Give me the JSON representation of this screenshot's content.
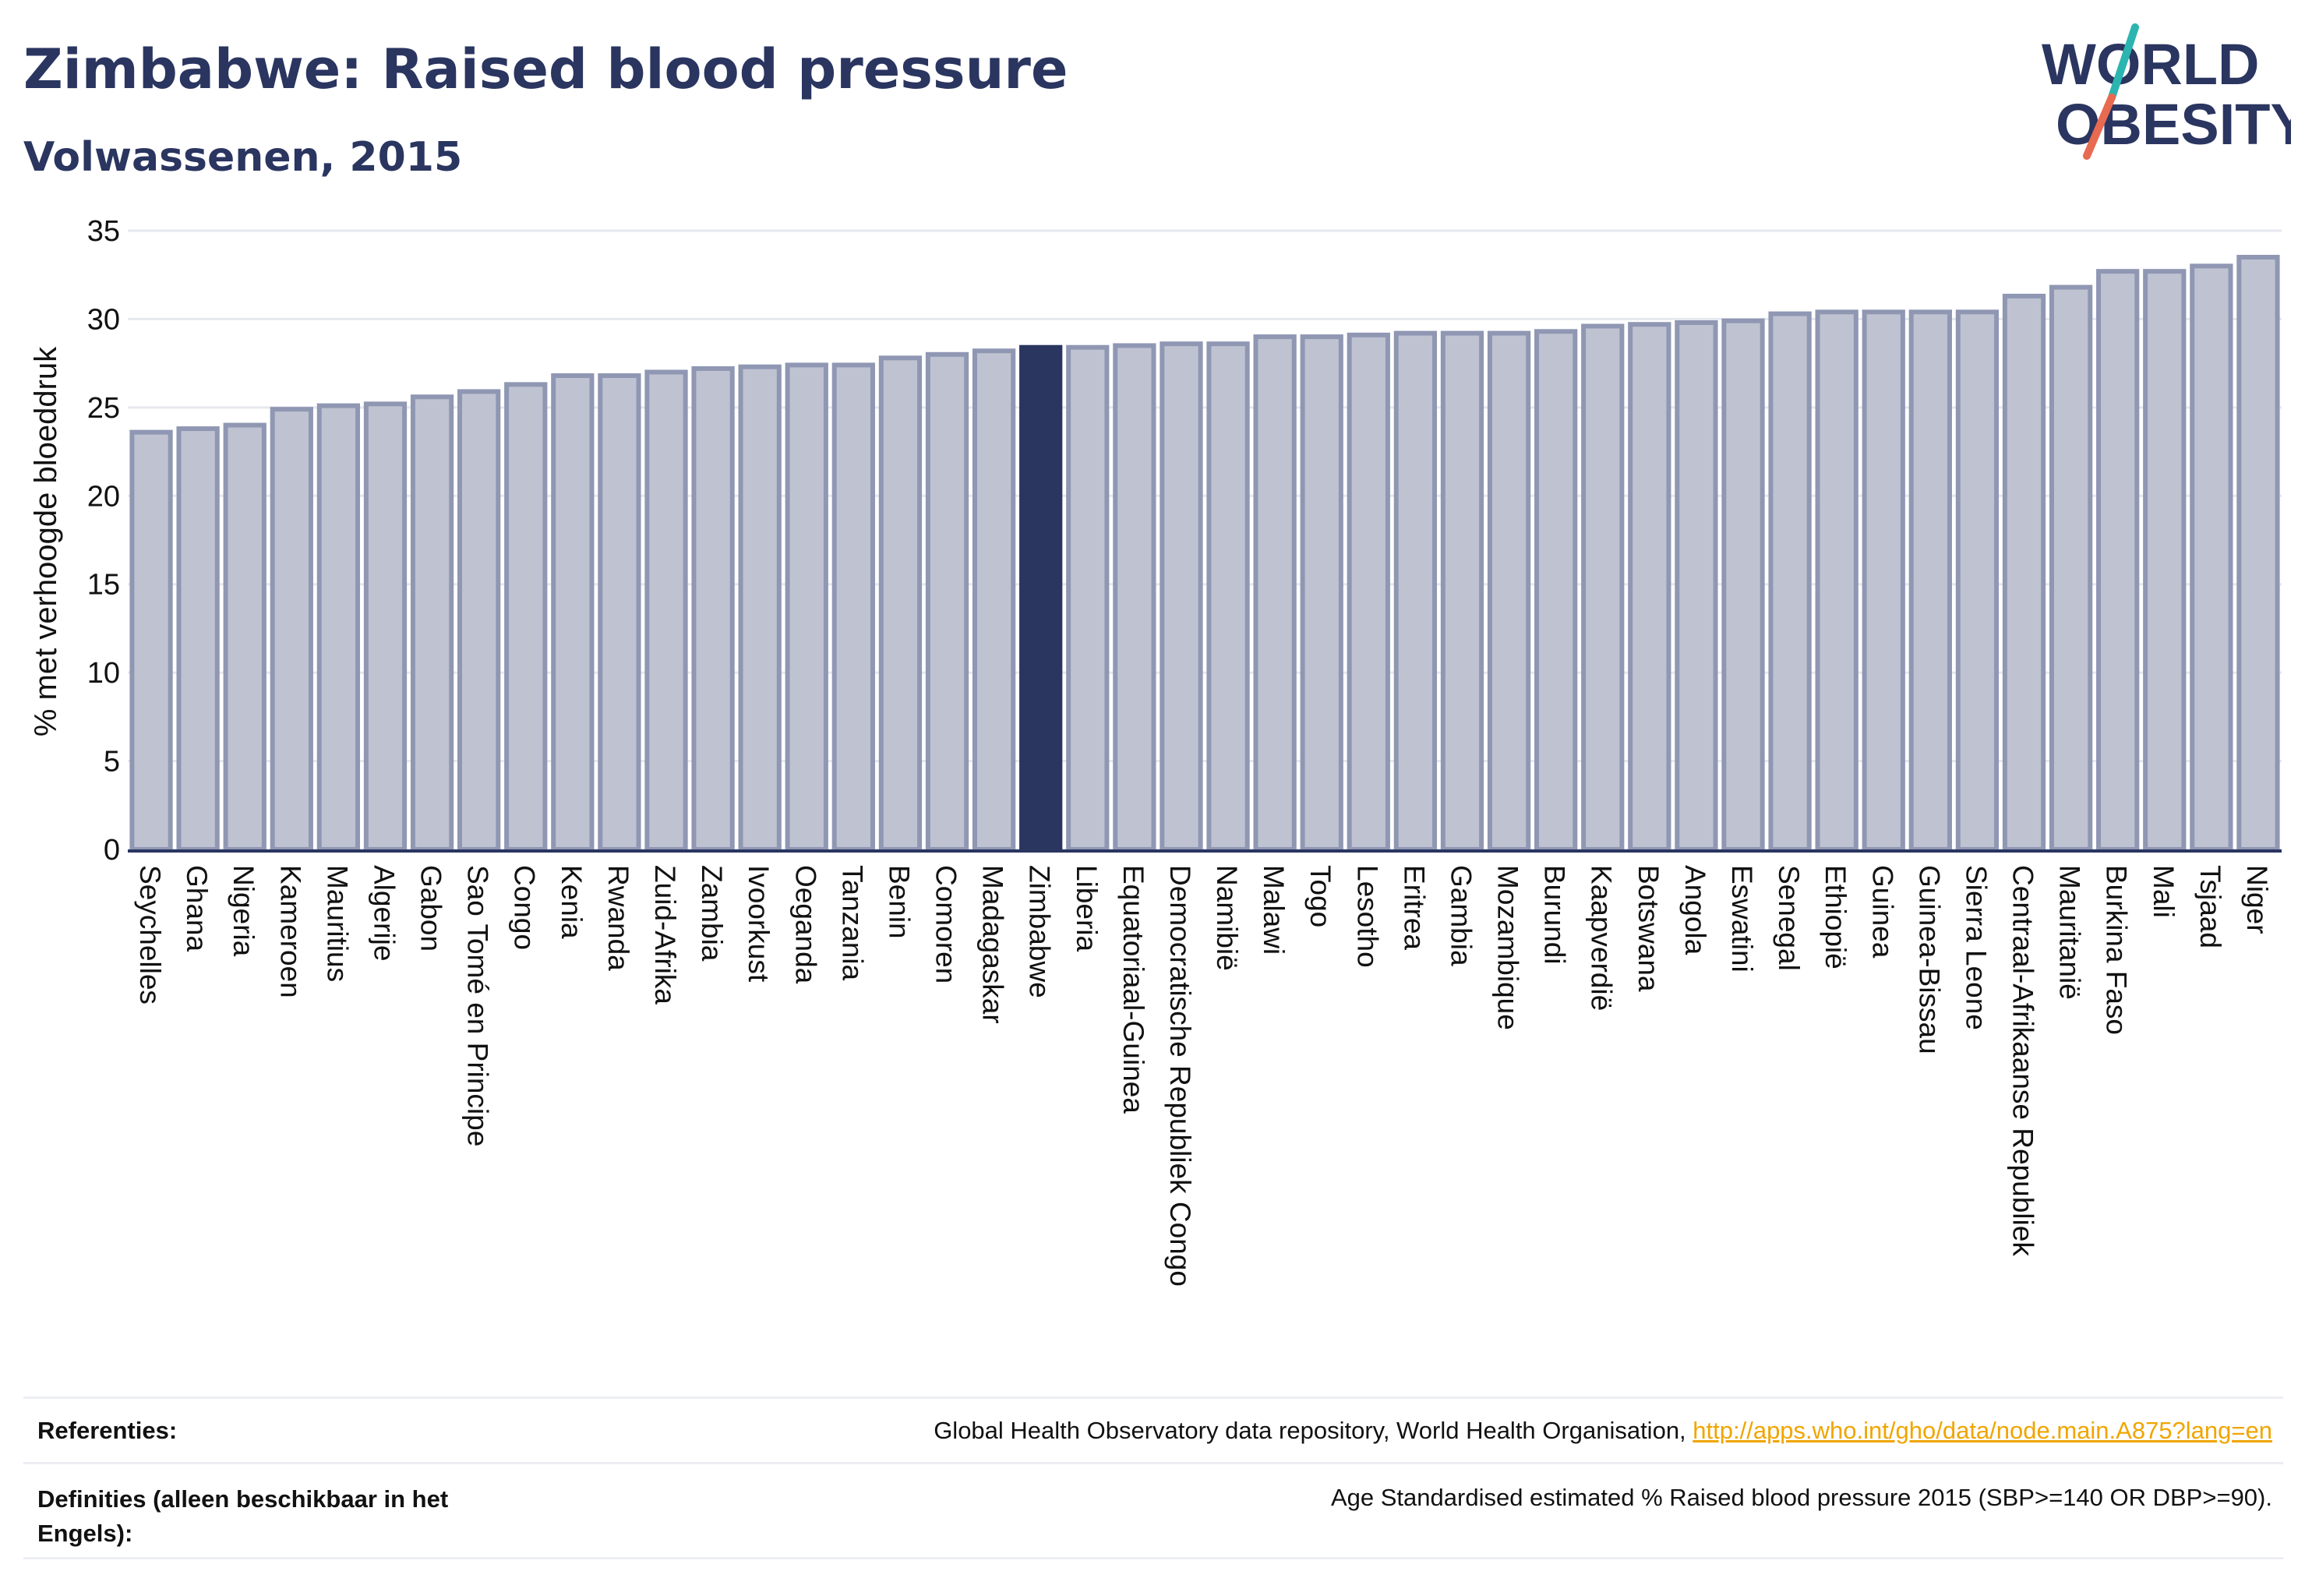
{
  "header": {
    "title": "Zimbabwe: Raised blood pressure",
    "subtitle": "Volwassenen, 2015",
    "logo_line1": "WORLD",
    "logo_line2": "OBESITY"
  },
  "footer": {
    "ref_label": "Referenties:",
    "ref_text": "Global Health Observatory data repository, World Health Organisation, ",
    "ref_link": "http://apps.who.int/gho/data/node.main.A875?lang=en",
    "def_label": "Definities (alleen beschikbaar in het Engels):",
    "def_text": "Age Standardised estimated % Raised blood pressure 2015 (SBP>=140 OR DBP>=90)."
  },
  "colors": {
    "bar": "#bfc3d1",
    "bar_stroke": "#8f97b3",
    "highlight": "#2a3560",
    "grid": "#e6e8ef",
    "axis": "#2a3560",
    "logo_teal": "#2bb5b0",
    "logo_orange": "#e86a50"
  },
  "chart_data": {
    "type": "bar",
    "title": "Zimbabwe: Raised blood pressure",
    "subtitle": "Volwassenen, 2015",
    "xlabel": "",
    "ylabel": "% met verhoogde bloeddruk",
    "ylim": [
      0,
      35
    ],
    "yticks": [
      0,
      5,
      10,
      15,
      20,
      25,
      30,
      35
    ],
    "grid": true,
    "highlight": "Zimbabwe",
    "categories": [
      "Seychelles",
      "Ghana",
      "Nigeria",
      "Kameroen",
      "Mauritius",
      "Algerije",
      "Gabon",
      "Sao Tomé en Principe",
      "Congo",
      "Kenia",
      "Rwanda",
      "Zuid-Afrika",
      "Zambia",
      "Ivoorkust",
      "Oeganda",
      "Tanzania",
      "Benin",
      "Comoren",
      "Madagaskar",
      "Zimbabwe",
      "Liberia",
      "Equatoriaal-Guinea",
      "Democratische Republiek Congo",
      "Namibië",
      "Malawi",
      "Togo",
      "Lesotho",
      "Eritrea",
      "Gambia",
      "Mozambique",
      "Burundi",
      "Kaapverdië",
      "Botswana",
      "Angola",
      "Eswatini",
      "Senegal",
      "Ethiopië",
      "Guinea",
      "Guinea-Bissau",
      "Sierra Leone",
      "Centraal-Afrikaanse Republiek",
      "Mauritanië",
      "Burkina Faso",
      "Mali",
      "Tsjaad",
      "Niger"
    ],
    "values": [
      23.6,
      23.8,
      24.0,
      24.9,
      25.1,
      25.2,
      25.6,
      25.9,
      26.3,
      26.8,
      26.8,
      27.0,
      27.2,
      27.3,
      27.4,
      27.4,
      27.8,
      28.0,
      28.2,
      28.4,
      28.4,
      28.5,
      28.6,
      28.6,
      29.0,
      29.0,
      29.1,
      29.2,
      29.2,
      29.2,
      29.3,
      29.6,
      29.7,
      29.8,
      29.9,
      30.3,
      30.4,
      30.4,
      30.4,
      30.4,
      31.3,
      31.8,
      32.7,
      32.7,
      33.0,
      33.5
    ]
  }
}
